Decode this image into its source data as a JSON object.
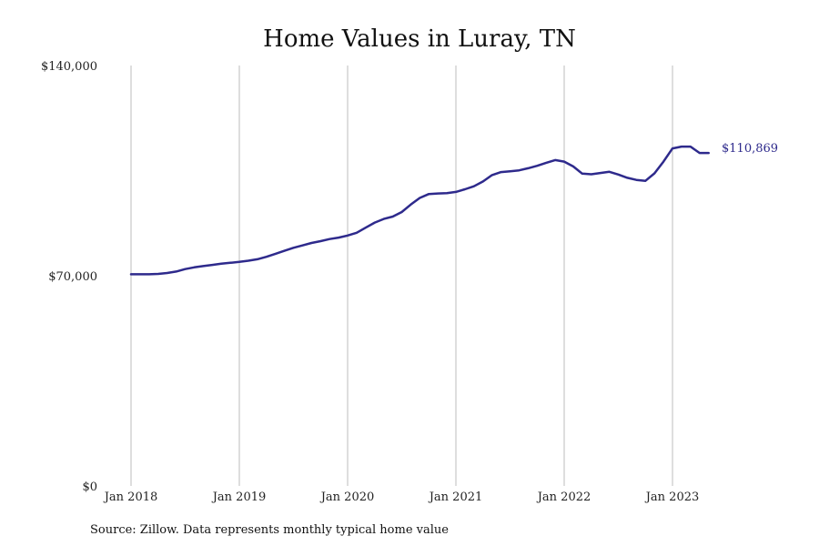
{
  "chart_data": {
    "type": "line",
    "title": "Home Values in Luray, TN",
    "xlabel": "",
    "ylabel": "",
    "x_ticks": [
      "Jan 2018",
      "Jan 2019",
      "Jan 2020",
      "Jan 2021",
      "Jan 2022",
      "Jan 2023"
    ],
    "y_ticks": [
      "$0",
      "$70,000",
      "$140,000"
    ],
    "ylim": [
      0,
      140000
    ],
    "xlim": [
      "2018-01",
      "2023-12"
    ],
    "grid": "vertical lines at each January",
    "line_color": "#2e2a8c",
    "end_label": "$110,869",
    "series": [
      {
        "x": [
          "2018-01",
          "2018-02",
          "2018-03",
          "2018-04",
          "2018-05",
          "2018-06",
          "2018-07",
          "2018-08",
          "2018-09",
          "2018-10",
          "2018-11",
          "2018-12",
          "2019-01",
          "2019-02",
          "2019-03",
          "2019-04",
          "2019-05",
          "2019-06",
          "2019-07",
          "2019-08",
          "2019-09",
          "2019-10",
          "2019-11",
          "2019-12",
          "2020-01",
          "2020-02",
          "2020-03",
          "2020-04",
          "2020-05",
          "2020-06",
          "2020-07",
          "2020-08",
          "2020-09",
          "2020-10",
          "2020-11",
          "2020-12",
          "2021-01",
          "2021-02",
          "2021-03",
          "2021-04",
          "2021-05",
          "2021-06",
          "2021-07",
          "2021-08",
          "2021-09",
          "2021-10",
          "2021-11",
          "2021-12",
          "2022-01",
          "2022-02",
          "2022-03",
          "2022-04",
          "2022-05",
          "2022-06",
          "2022-07",
          "2022-08",
          "2022-09",
          "2022-10",
          "2022-11",
          "2022-12",
          "2023-01",
          "2023-02",
          "2023-03",
          "2023-04",
          "2023-05"
        ],
        "values": [
          70500,
          70500,
          70500,
          70600,
          70900,
          71400,
          72200,
          72800,
          73200,
          73600,
          74000,
          74300,
          74600,
          75000,
          75500,
          76300,
          77300,
          78300,
          79300,
          80100,
          80900,
          81500,
          82200,
          82700,
          83400,
          84300,
          86000,
          87700,
          88900,
          89700,
          91200,
          93700,
          95900,
          97200,
          97400,
          97500,
          97900,
          98800,
          99800,
          101400,
          103500,
          104500,
          104800,
          105100,
          105800,
          106600,
          107600,
          108500,
          108000,
          106400,
          104000,
          103800,
          104200,
          104600,
          103700,
          102600,
          101900,
          101600,
          104100,
          108000,
          112400,
          113000,
          113000,
          110869,
          110869
        ]
      }
    ],
    "source_note": "Source: Zillow. Data represents monthly typical home value"
  }
}
